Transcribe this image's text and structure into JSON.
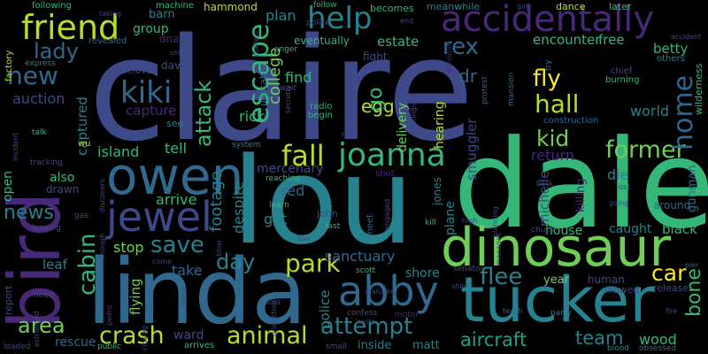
{
  "background": "#000000",
  "palette": [
    "#440154",
    "#482878",
    "#3e4989",
    "#31688e",
    "#26828e",
    "#1f9e89",
    "#35b779",
    "#6ece58",
    "#b5de2b",
    "#fde725"
  ],
  "words": [
    {
      "text": "claire",
      "color": "#3e4989"
    },
    {
      "text": "lou",
      "color": "#26828e"
    },
    {
      "text": "dale",
      "color": "#35b779"
    },
    {
      "text": "linda",
      "color": "#31688e"
    },
    {
      "text": "bird",
      "color": "#482878"
    },
    {
      "text": "tucker",
      "color": "#26828e"
    },
    {
      "text": "dinosaur",
      "color": "#6ece58"
    },
    {
      "text": "accidentally",
      "color": "#482878"
    },
    {
      "text": "owen",
      "color": "#31688e"
    },
    {
      "text": "jewel",
      "color": "#3e4989"
    },
    {
      "text": "abby",
      "color": "#31688e"
    },
    {
      "text": "friend",
      "color": "#b5de2b"
    },
    {
      "text": "joanna",
      "color": "#35b779"
    },
    {
      "text": "kiki",
      "color": "#31688e"
    },
    {
      "text": "help",
      "color": "#26828e"
    },
    {
      "text": "fall",
      "color": "#b5de2b"
    },
    {
      "text": "escape",
      "color": "#35b779"
    },
    {
      "text": "park",
      "color": "#b5de2b"
    },
    {
      "text": "crash",
      "color": "#b5de2b"
    },
    {
      "text": "animal",
      "color": "#b5de2b"
    },
    {
      "text": "attempt",
      "color": "#26828e"
    },
    {
      "text": "cabin",
      "color": "#35b779"
    },
    {
      "text": "save",
      "color": "#26828e"
    },
    {
      "text": "former",
      "color": "#6ece58"
    },
    {
      "text": "home",
      "color": "#31688e"
    },
    {
      "text": "rex",
      "color": "#31688e"
    },
    {
      "text": "new",
      "color": "#31688e"
    },
    {
      "text": "news",
      "color": "#26828e"
    },
    {
      "text": "car",
      "color": "#fde725"
    },
    {
      "text": "hall",
      "color": "#b5de2b"
    },
    {
      "text": "area",
      "color": "#6ece58"
    },
    {
      "text": "lady",
      "color": "#31688e"
    },
    {
      "text": "flee",
      "color": "#26828e"
    },
    {
      "text": "kid",
      "color": "#6ece58"
    },
    {
      "text": "attack",
      "color": "#35b779"
    },
    {
      "text": "day",
      "color": "#26828e"
    },
    {
      "text": "egg",
      "color": "#b5de2b"
    },
    {
      "text": "go",
      "color": "#35b779"
    },
    {
      "text": "fly",
      "color": "#fde725"
    },
    {
      "text": "bone",
      "color": "#35b779"
    },
    {
      "text": "aircraft",
      "color": "#1f9e89"
    },
    {
      "text": "team",
      "color": "#26828e"
    },
    {
      "text": "auction",
      "color": "#3e4989"
    },
    {
      "text": "sanctuary",
      "color": "#31688e"
    },
    {
      "text": "footage",
      "color": "#26828e"
    },
    {
      "text": "captured",
      "color": "#26828e"
    },
    {
      "text": "world",
      "color": "#26828e"
    },
    {
      "text": "island",
      "color": "#35b779"
    },
    {
      "text": "tell",
      "color": "#35b779"
    },
    {
      "text": "rick",
      "color": "#35b779"
    },
    {
      "text": "find",
      "color": "#35b779"
    },
    {
      "text": "wood",
      "color": "#35b779"
    },
    {
      "text": "take",
      "color": "#31688e"
    },
    {
      "text": "ward",
      "color": "#3e4989"
    },
    {
      "text": "stop",
      "color": "#6ece58"
    },
    {
      "text": "arrive",
      "color": "#35b779"
    },
    {
      "text": "despite",
      "color": "#26828e"
    },
    {
      "text": "get",
      "color": "#26828e"
    },
    {
      "text": "red",
      "color": "#31688e"
    },
    {
      "text": "smuggler",
      "color": "#3e4989"
    },
    {
      "text": "return",
      "color": "#482878"
    },
    {
      "text": "die",
      "color": "#26828e"
    },
    {
      "text": "michelle",
      "color": "#3e4989"
    },
    {
      "text": "dr",
      "color": "#31688e"
    },
    {
      "text": "estate",
      "color": "#35b779"
    },
    {
      "text": "encounter",
      "color": "#35b779"
    },
    {
      "text": "free",
      "color": "#35b779"
    },
    {
      "text": "betty",
      "color": "#35b779"
    },
    {
      "text": "capture",
      "color": "#482878"
    },
    {
      "text": "plane",
      "color": "#26828e"
    },
    {
      "text": "leaf",
      "color": "#26828e"
    },
    {
      "text": "flying",
      "color": "#6ece58"
    },
    {
      "text": "black",
      "color": "#35b779"
    },
    {
      "text": "caught",
      "color": "#26828e"
    },
    {
      "text": "house",
      "color": "#35b779"
    },
    {
      "text": "police",
      "color": "#26828e"
    },
    {
      "text": "shore",
      "color": "#26828e"
    },
    {
      "text": "rescue",
      "color": "#31688e"
    },
    {
      "text": "also",
      "color": "#35b779"
    },
    {
      "text": "open",
      "color": "#35b779"
    },
    {
      "text": "plan",
      "color": "#26828e"
    },
    {
      "text": "mercenary",
      "color": "#3e4989"
    },
    {
      "text": "delivery",
      "color": "#6ece58"
    },
    {
      "text": "hearing",
      "color": "#b5de2b"
    },
    {
      "text": "killing",
      "color": "#482878"
    },
    {
      "text": "college",
      "color": "#6ece58"
    },
    {
      "text": "year",
      "color": "#6ece58"
    },
    {
      "text": "inside",
      "color": "#26828e"
    },
    {
      "text": "matt",
      "color": "#26828e"
    },
    {
      "text": "gunman",
      "color": "#31688e"
    },
    {
      "text": "around",
      "color": "#31688e"
    },
    {
      "text": "human",
      "color": "#3e4989"
    },
    {
      "text": "fight",
      "color": "#3e4989"
    },
    {
      "text": "group",
      "color": "#35b779"
    },
    {
      "text": "barn",
      "color": "#26828e"
    },
    {
      "text": "dna",
      "color": "#482878"
    },
    {
      "text": "hammond",
      "color": "#b5de2b"
    },
    {
      "text": "eventually",
      "color": "#35b779"
    },
    {
      "text": "david",
      "color": "#3e4989"
    },
    {
      "text": "report",
      "color": "#3e4989"
    },
    {
      "text": "drawn",
      "color": "#3e4989"
    },
    {
      "text": "jones",
      "color": "#26828e"
    },
    {
      "text": "john",
      "color": "#3e4989"
    },
    {
      "text": "unstable",
      "color": "#31688e"
    },
    {
      "text": "wilderness",
      "color": "#35b779"
    },
    {
      "text": "release",
      "color": "#3e4989"
    },
    {
      "text": "allowed",
      "color": "#3e4989"
    },
    {
      "text": "dance",
      "color": "#b5de2b"
    },
    {
      "text": "later",
      "color": "#35b779"
    },
    {
      "text": "becomes",
      "color": "#35b779"
    },
    {
      "text": "meanwhile",
      "color": "#26828e"
    },
    {
      "text": "others",
      "color": "#26828e"
    },
    {
      "text": "chief",
      "color": "#3e4989"
    },
    {
      "text": "burning",
      "color": "#35b779"
    },
    {
      "text": "construction",
      "color": "#31688e"
    },
    {
      "text": "radio",
      "color": "#35b779"
    },
    {
      "text": "begin",
      "color": "#35b779"
    },
    {
      "text": "see",
      "color": "#26828e"
    },
    {
      "text": "wu",
      "color": "#b5de2b"
    },
    {
      "text": "beloved",
      "color": "#3e4989"
    },
    {
      "text": "revealed",
      "color": "#31688e"
    },
    {
      "text": "machine",
      "color": "#35b779"
    },
    {
      "text": "following",
      "color": "#35b779"
    },
    {
      "text": "factory",
      "color": "#b5de2b"
    },
    {
      "text": "express",
      "color": "#26828e"
    },
    {
      "text": "talk",
      "color": "#35b779"
    },
    {
      "text": "tracking",
      "color": "#3e4989"
    },
    {
      "text": "leaving",
      "color": "#3e4989"
    },
    {
      "text": "loaded",
      "color": "#3e4989"
    },
    {
      "text": "public",
      "color": "#35b779"
    },
    {
      "text": "arrives",
      "color": "#35b779"
    },
    {
      "text": "scott",
      "color": "#35b779"
    },
    {
      "text": "senator",
      "color": "#3e4989"
    },
    {
      "text": "learn",
      "color": "#35b779"
    },
    {
      "text": "last",
      "color": "#35b779"
    },
    {
      "text": "shot",
      "color": "#482878"
    },
    {
      "text": "kill",
      "color": "#35b779"
    },
    {
      "text": "meet",
      "color": "#31688e"
    },
    {
      "text": "wait",
      "color": "#3e4989"
    },
    {
      "text": "rio",
      "color": "#3e4989"
    },
    {
      "text": "party",
      "color": "#26828e"
    },
    {
      "text": "teach",
      "color": "#31688e"
    },
    {
      "text": "ship",
      "color": "#3e4989"
    },
    {
      "text": "small",
      "color": "#3e4989"
    },
    {
      "text": "blood",
      "color": "#26828e"
    },
    {
      "text": "obsessed",
      "color": "#31688e"
    },
    {
      "text": "need",
      "color": "#3e4989"
    },
    {
      "text": "confess",
      "color": "#3e4989"
    },
    {
      "text": "motor",
      "color": "#482878"
    },
    {
      "text": "chuck",
      "color": "#3e4989"
    },
    {
      "text": "going",
      "color": "#3e4989"
    },
    {
      "text": "lost",
      "color": "#3e4989"
    },
    {
      "text": "pier",
      "color": "#31688e"
    },
    {
      "text": "high",
      "color": "#3e4989"
    },
    {
      "text": "gas",
      "color": "#3e4989"
    },
    {
      "text": "system",
      "color": "#26828e"
    },
    {
      "text": "reaching",
      "color": "#35b779"
    },
    {
      "text": "protest",
      "color": "#31688e"
    },
    {
      "text": "mansion",
      "color": "#31688e"
    },
    {
      "text": "elevator",
      "color": "#482878"
    },
    {
      "text": "try",
      "color": "#26828e"
    },
    {
      "text": "police",
      "color": "#3e4989"
    },
    {
      "text": "anger",
      "color": "#35b779"
    },
    {
      "text": "follow",
      "color": "#35b779"
    },
    {
      "text": "girl",
      "color": "#3e4989"
    },
    {
      "text": "taking",
      "color": "#3e4989"
    },
    {
      "text": "accident",
      "color": "#3e4989"
    },
    {
      "text": "using",
      "color": "#3e4989"
    },
    {
      "text": "end",
      "color": "#3e4989"
    },
    {
      "text": "secretly",
      "color": "#3e4989"
    },
    {
      "text": "near",
      "color": "#3e4989"
    },
    {
      "text": "invite",
      "color": "#3e4989"
    },
    {
      "text": "forcibly",
      "color": "#3e4989"
    },
    {
      "text": "bringing",
      "color": "#3e4989"
    },
    {
      "text": "planning",
      "color": "#3e4989"
    },
    {
      "text": "pedro",
      "color": "#3e4989"
    },
    {
      "text": "blow",
      "color": "#3e4989"
    },
    {
      "text": "sold",
      "color": "#3e4989"
    },
    {
      "text": "box",
      "color": "#3e4989"
    },
    {
      "text": "come",
      "color": "#3e4989"
    },
    {
      "text": "malcolm",
      "color": "#3e4989"
    },
    {
      "text": "back",
      "color": "#3e4989"
    },
    {
      "text": "fire",
      "color": "#3e4989"
    },
    {
      "text": "though",
      "color": "#3e4989"
    },
    {
      "text": "discovers",
      "color": "#3e4989"
    },
    {
      "text": "manages",
      "color": "#3e4989"
    },
    {
      "text": "incident",
      "color": "#3e4989"
    },
    {
      "text": "estranged",
      "color": "#3e4989"
    },
    {
      "text": "scene",
      "color": "#3e4989"
    },
    {
      "text": "closing",
      "color": "#3e4989"
    },
    {
      "text": "protection",
      "color": "#3e4989"
    },
    {
      "text": "engaged",
      "color": "#3e4989"
    },
    {
      "text": "contest",
      "color": "#3e4989"
    }
  ]
}
